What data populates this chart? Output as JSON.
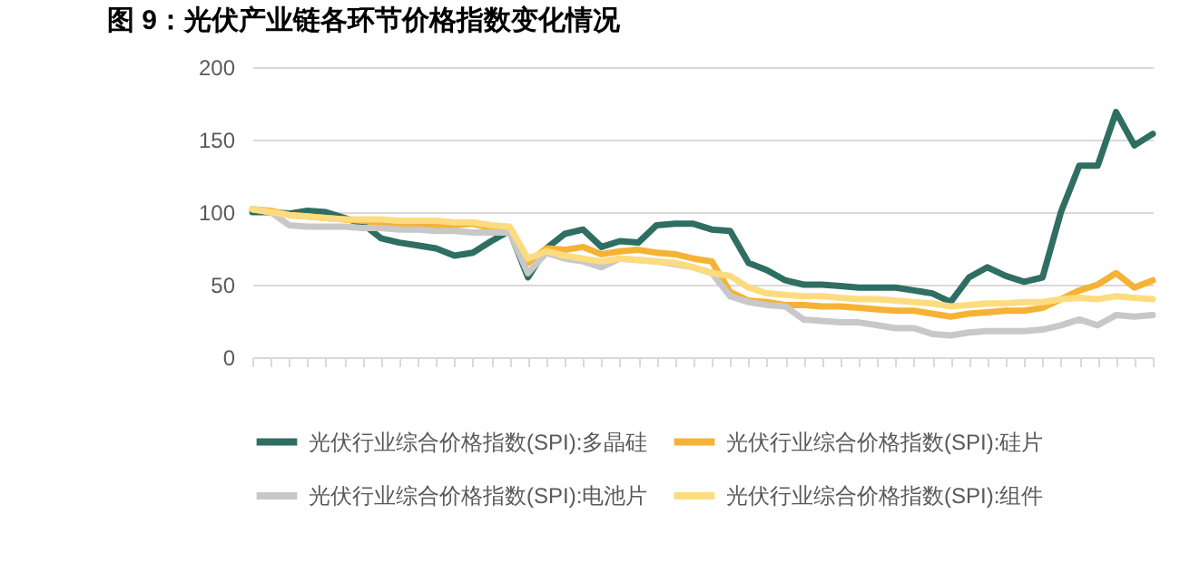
{
  "chart_data": {
    "type": "line",
    "title": "图 9：光伏产业链各环节价格指数变化情况",
    "categories": [
      null,
      null,
      null,
      null,
      null,
      null,
      null,
      null,
      null,
      null,
      null,
      null,
      null,
      null,
      null,
      null,
      null,
      null,
      null,
      null,
      null,
      null,
      null,
      null,
      null,
      null,
      null,
      null,
      null,
      null,
      null,
      null,
      null,
      null,
      null,
      null,
      null,
      null,
      null,
      null,
      null,
      null,
      null,
      null,
      null,
      null,
      null,
      null,
      null,
      null
    ],
    "series": [
      {
        "name": "光伏行业综合价格指数(SPI):多晶硅",
        "color": "#2e6e63",
        "values": [
          100,
          100,
          99,
          101,
          100,
          96,
          92,
          82,
          79,
          77,
          75,
          70,
          72,
          80,
          87,
          55,
          75,
          85,
          88,
          76,
          80,
          79,
          91,
          92,
          92,
          88,
          87,
          65,
          60,
          53,
          50,
          50,
          49,
          48,
          48,
          48,
          46,
          44,
          38,
          55,
          62,
          56,
          52,
          55,
          100,
          132,
          132,
          169,
          146,
          154
        ]
      },
      {
        "name": "光伏行业综合价格指数(SPI):硅片",
        "color": "#f5b335",
        "values": [
          102,
          101,
          98,
          97,
          96,
          95,
          94,
          93,
          92,
          91,
          91,
          91,
          92,
          89,
          88,
          65,
          75,
          74,
          76,
          71,
          73,
          74,
          72,
          71,
          68,
          66,
          45,
          39,
          38,
          36,
          36,
          35,
          35,
          34,
          33,
          32,
          32,
          30,
          28,
          30,
          31,
          32,
          32,
          34,
          40,
          46,
          50,
          58,
          48,
          53
        ]
      },
      {
        "name": "光伏行业综合价格指数(SPI):电池片",
        "color": "#c8c8c8",
        "values": [
          102,
          100,
          91,
          90,
          90,
          90,
          89,
          89,
          88,
          88,
          87,
          87,
          86,
          86,
          86,
          58,
          72,
          68,
          66,
          62,
          68,
          67,
          66,
          64,
          62,
          58,
          42,
          38,
          36,
          35,
          26,
          25,
          24,
          24,
          22,
          20,
          20,
          16,
          15,
          17,
          18,
          18,
          18,
          19,
          22,
          26,
          22,
          29,
          28,
          29
        ]
      },
      {
        "name": "光伏行业综合价格指数(SPI):组件",
        "color": "#fddc80",
        "values": [
          102,
          100,
          98,
          97,
          96,
          95,
          95,
          95,
          94,
          94,
          94,
          93,
          93,
          91,
          90,
          68,
          73,
          70,
          68,
          66,
          68,
          67,
          66,
          65,
          62,
          58,
          56,
          48,
          44,
          43,
          42,
          42,
          41,
          40,
          40,
          39,
          38,
          37,
          35,
          36,
          37,
          37,
          38,
          38,
          40,
          41,
          40,
          42,
          41,
          40
        ]
      }
    ],
    "ylim": [
      0,
      200
    ],
    "yticks": [
      0,
      50,
      100,
      150,
      200
    ],
    "grid": "y",
    "legend": "bottom",
    "marker": "none",
    "line_style": "solid"
  }
}
